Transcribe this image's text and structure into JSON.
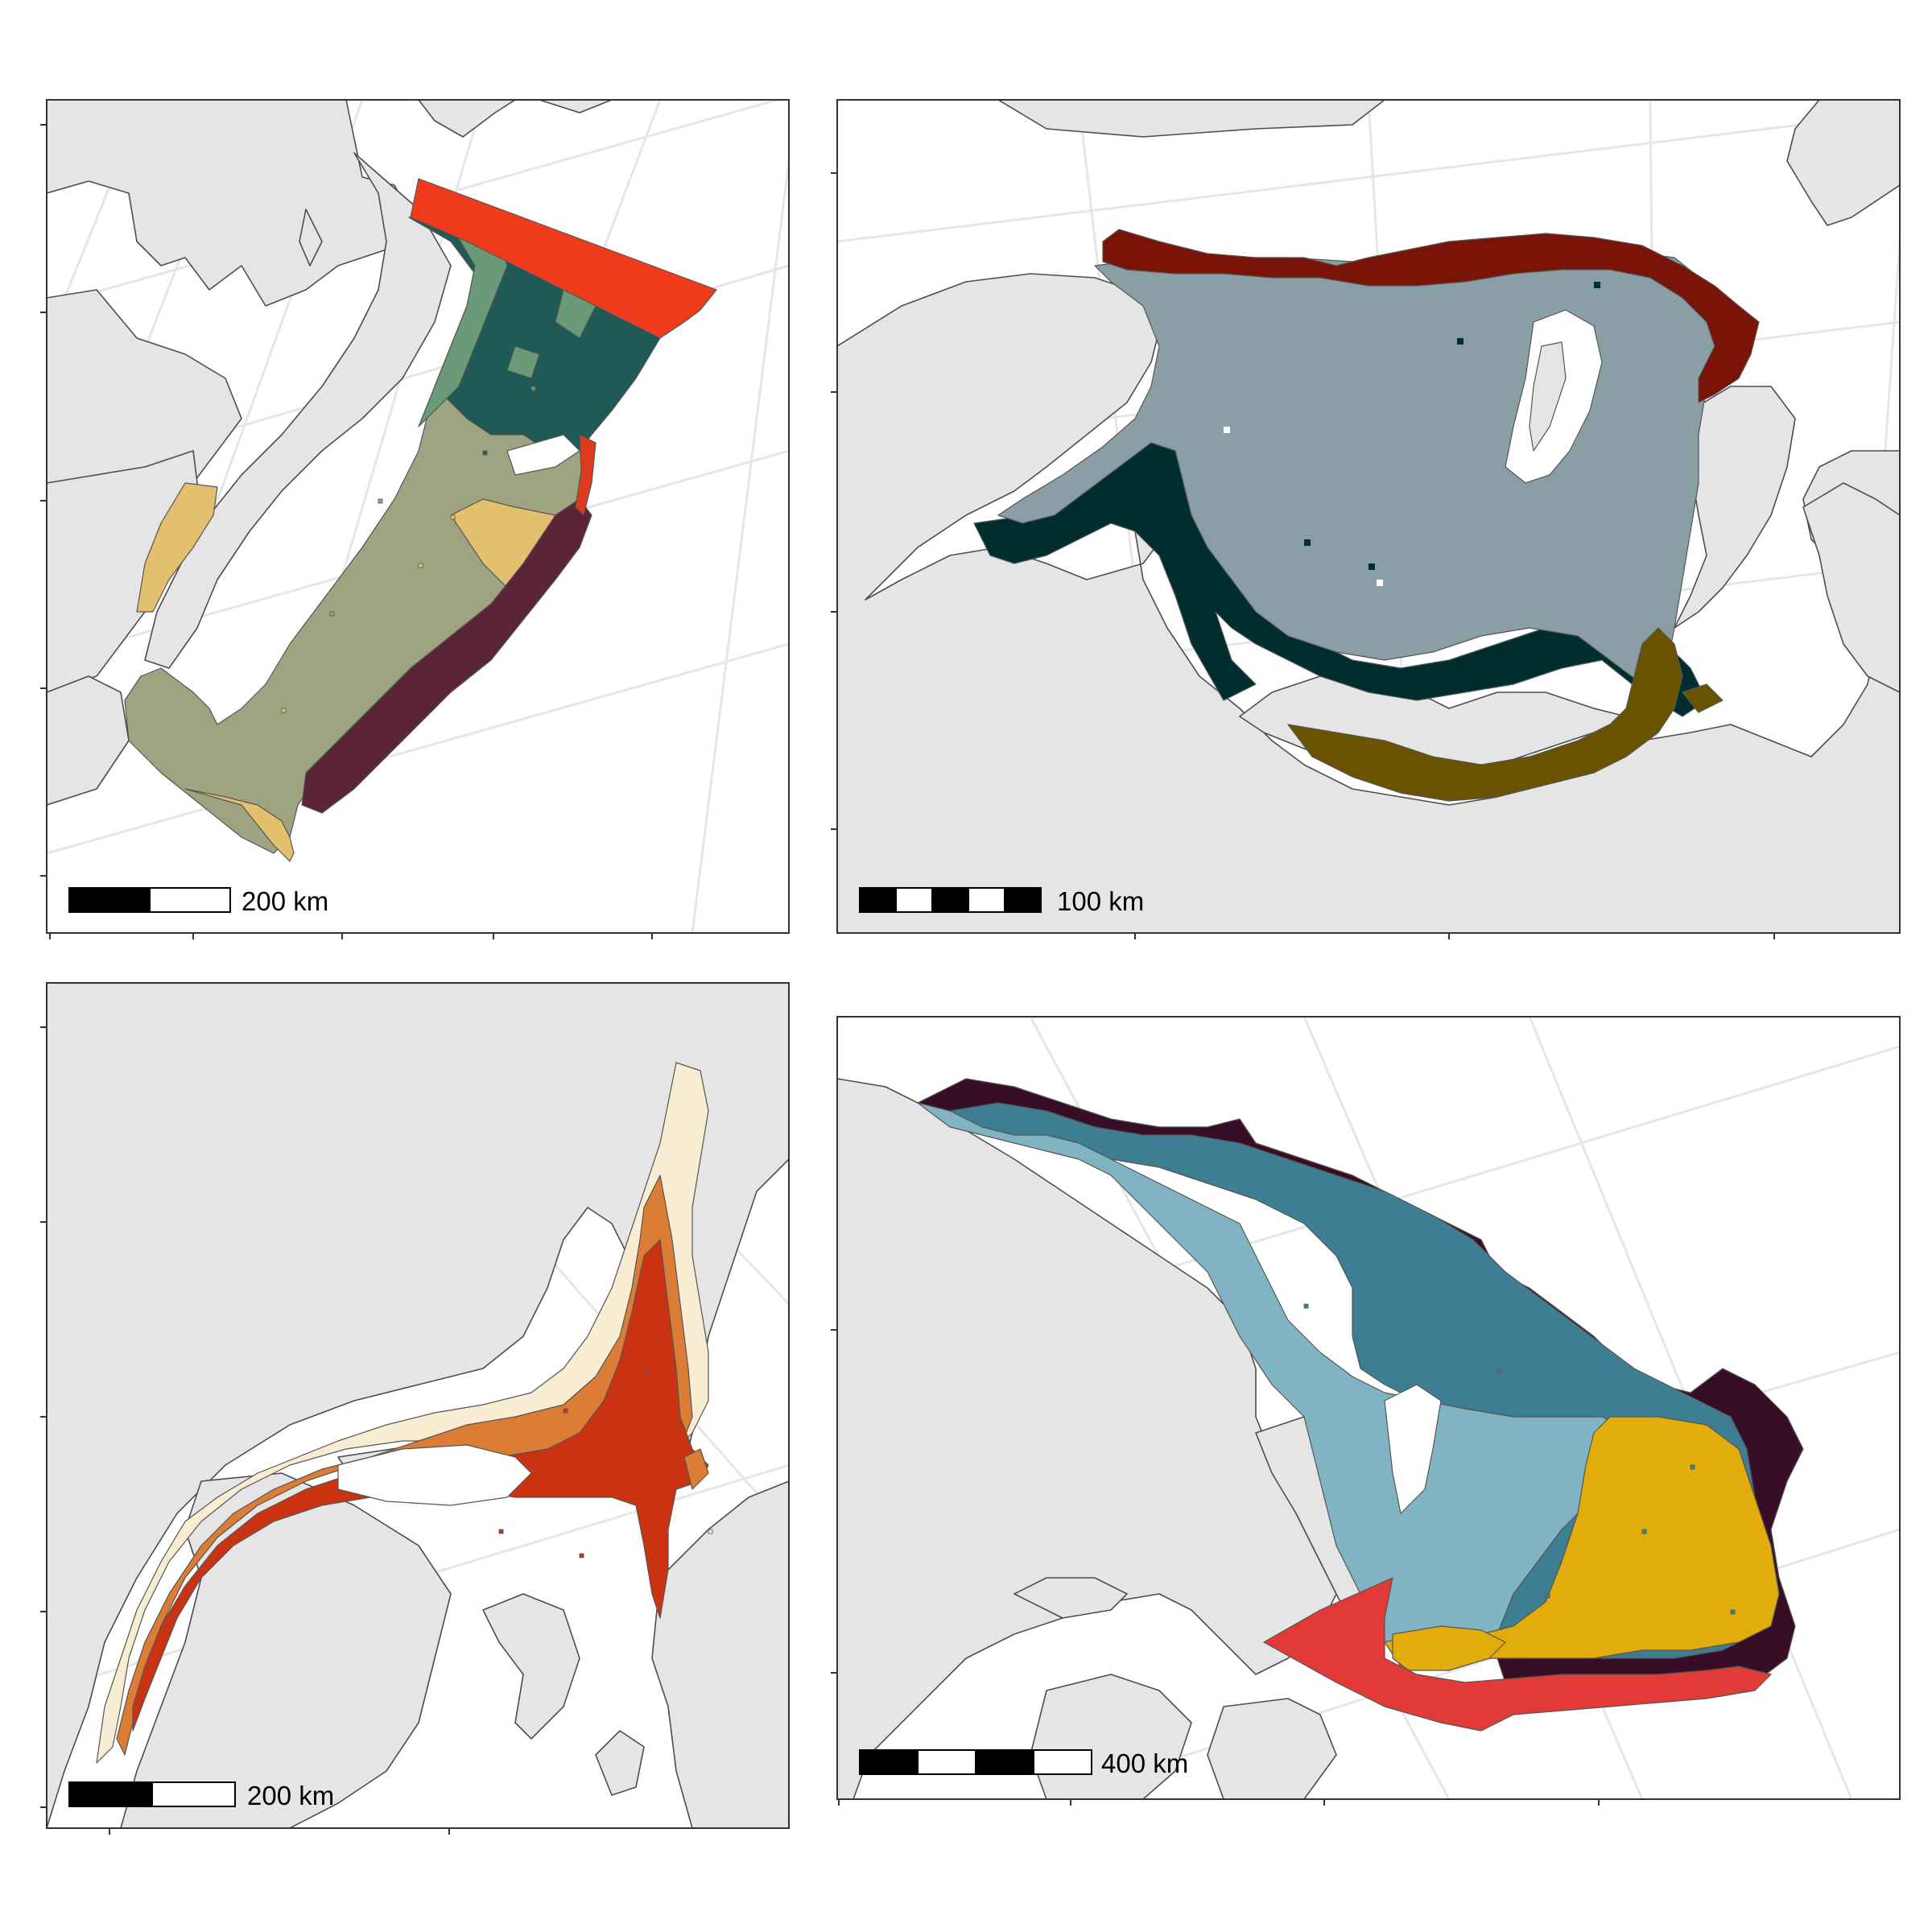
{
  "colors": {
    "land": "#e5e5e5",
    "coastline": "#4d4d4d",
    "graticule": "#e6e6e6",
    "frame": "#333333",
    "water": "#ffffff"
  },
  "panels": [
    {
      "id": "top-left",
      "scale_bar_label": "200 km",
      "scale_bar_segments": 2,
      "region_colors": [
        "#f03a1c",
        "#1f5a57",
        "#6a9a78",
        "#9da47f",
        "#e3c06e",
        "#5b2537"
      ]
    },
    {
      "id": "top-right",
      "scale_bar_label": "100 km",
      "scale_bar_segments": 5,
      "region_colors": [
        "#7a1408",
        "#8a9ea6",
        "#002e30",
        "#6a5300"
      ]
    },
    {
      "id": "bottom-left",
      "scale_bar_label": "200 km",
      "scale_bar_segments": 2,
      "region_colors": [
        "#f8ecd3",
        "#dc7d35",
        "#c93312"
      ]
    },
    {
      "id": "bottom-right",
      "scale_bar_label": "400 km",
      "scale_bar_segments": 4,
      "region_colors": [
        "#380e27",
        "#3e7e93",
        "#80b4c3",
        "#e2ac0a",
        "#e23a36"
      ]
    }
  ]
}
